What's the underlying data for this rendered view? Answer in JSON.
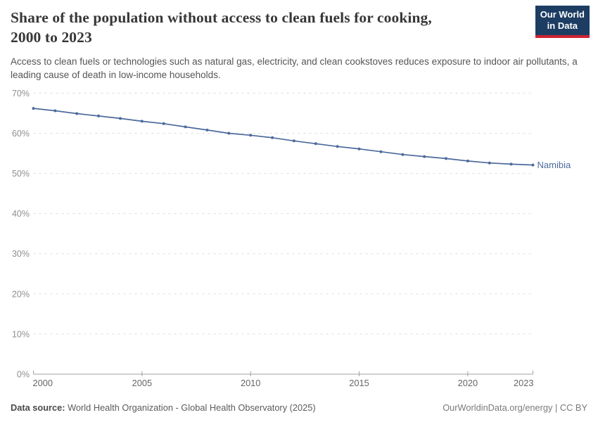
{
  "header": {
    "title_line1": "Share of the population without access to clean fuels for cooking,",
    "title_line2": "2000 to 2023",
    "subtitle": "Access to clean fuels or technologies such as natural gas, electricity, and clean cookstoves reduces exposure to indoor air pollutants, a leading cause of death in low-income households.",
    "logo": {
      "line1": "Our World",
      "line2": "in Data",
      "bg_color": "#1d3d63",
      "bar_color": "#cf2334"
    }
  },
  "chart_data": {
    "type": "line",
    "title": "Share of the population without access to clean fuels for cooking, 2000 to 2023",
    "x": [
      2000,
      2001,
      2002,
      2003,
      2004,
      2005,
      2006,
      2007,
      2008,
      2009,
      2010,
      2011,
      2012,
      2013,
      2014,
      2015,
      2016,
      2017,
      2018,
      2019,
      2020,
      2021,
      2022,
      2023
    ],
    "series": [
      {
        "name": "Namibia",
        "color": "#4c6a9c",
        "values": [
          66.2,
          65.6,
          64.9,
          64.3,
          63.7,
          63.0,
          62.4,
          61.6,
          60.8,
          60.0,
          59.5,
          58.9,
          58.1,
          57.4,
          56.7,
          56.1,
          55.4,
          54.7,
          54.2,
          53.7,
          53.1,
          52.6,
          52.3,
          52.1
        ]
      }
    ],
    "ylim": [
      0,
      70
    ],
    "yticks": [
      0,
      10,
      20,
      30,
      40,
      50,
      60,
      70
    ],
    "ytick_suffix": "%",
    "xticks": [
      2000,
      2005,
      2010,
      2015,
      2020,
      2023
    ],
    "grid": "horizontal-dashed",
    "legend_position": "end-of-line",
    "xlabel": "",
    "ylabel": ""
  },
  "footer": {
    "data_source_label": "Data source:",
    "data_source_text": " World Health Organization - Global Health Observatory (2025)",
    "license_text": "OurWorldinData.org/energy | CC BY"
  },
  "colors": {
    "line": "#4c6a9c",
    "grid": "#dcdcdc",
    "axis": "#a0a0a0",
    "ytick_label": "#8f8f8f",
    "xtick_label": "#666666"
  }
}
